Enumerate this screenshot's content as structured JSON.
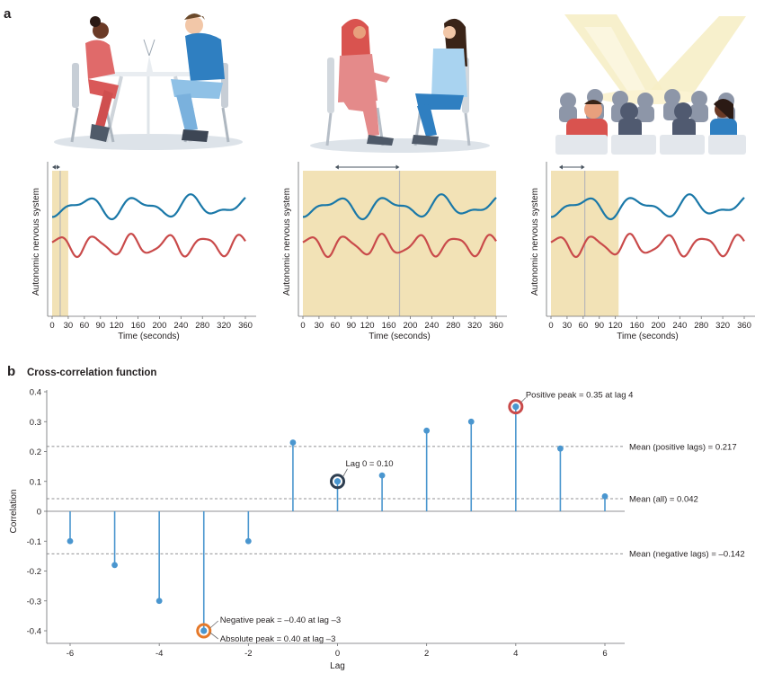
{
  "panel_a": {
    "letter": "a",
    "ylabel": "Autonomic nervous system",
    "xlabel": "Time (seconds)",
    "xticks": [
      "0",
      "30",
      "60",
      "90",
      "120",
      "160",
      "200",
      "240",
      "280",
      "320",
      "360"
    ],
    "colors": {
      "series_blue": "#1a78a8",
      "series_red": "#c94a4a",
      "window": "#f2e2b6"
    },
    "scenes": [
      "two-people-at-cafe-table",
      "two-women-seated-conversation",
      "audience-with-spotlights"
    ],
    "plots": [
      {
        "window_start_sec": 0,
        "window_end_sec": 30,
        "divider_sec": 15,
        "arrow_from_sec": 0,
        "arrow_to_sec": 15
      },
      {
        "window_start_sec": 0,
        "window_end_sec": 360,
        "divider_sec": 180,
        "arrow_from_sec": 60,
        "arrow_to_sec": 180
      },
      {
        "window_start_sec": 0,
        "window_end_sec": 126,
        "divider_sec": 63,
        "arrow_from_sec": 15,
        "arrow_to_sec": 63
      }
    ]
  },
  "panel_b": {
    "letter": "b",
    "title": "Cross-correlation function",
    "chart_data": {
      "type": "stem",
      "title": "Cross-correlation function",
      "xlabel": "Lag",
      "ylabel": "Correlation",
      "xlim": [
        -6,
        6
      ],
      "ylim": [
        -0.4,
        0.4
      ],
      "xticks": [
        -6,
        -4,
        -2,
        0,
        2,
        4,
        6
      ],
      "xtick_labels": [
        "-6",
        "-4",
        "-2",
        "0",
        "2",
        "4",
        "6"
      ],
      "yticks": [
        0.4,
        0.3,
        0.2,
        0.1,
        0,
        -0.1,
        -0.2,
        -0.3,
        -0.4
      ],
      "ytick_labels": [
        "0.4",
        "0.3",
        "0.2",
        "0.1",
        "0",
        "-0.1",
        "-0.2",
        "-0.3",
        "-0.4"
      ],
      "lags": [
        -6,
        -5,
        -4,
        -3,
        -2,
        -1,
        0,
        1,
        2,
        3,
        4,
        5,
        6
      ],
      "values": [
        -0.1,
        -0.18,
        -0.3,
        -0.4,
        -0.1,
        0.23,
        0.1,
        0.12,
        0.27,
        0.3,
        0.35,
        0.21,
        0.05
      ],
      "color": "#4a96cf",
      "reference_lines": [
        {
          "value": 0.217,
          "label": "Mean (positive lags) = 0.217"
        },
        {
          "value": 0.042,
          "label": "Mean (all) = 0.042"
        },
        {
          "value": -0.142,
          "label": "Mean (negative lags) = –0.142"
        }
      ],
      "highlights": [
        {
          "lag": 4,
          "value": 0.35,
          "ring_color": "#c94a4a",
          "labels": [
            "Positive peak = 0.35 at lag 4"
          ]
        },
        {
          "lag": 0,
          "value": 0.1,
          "ring_color": "#2e3e50",
          "labels": [
            "Lag 0 = 0.10"
          ]
        },
        {
          "lag": -3,
          "value": -0.4,
          "ring_color": "#e5792a",
          "labels": [
            "Negative peak = –0.40 at lag –3",
            "Absolute peak = 0.40 at lag –3"
          ]
        }
      ]
    }
  }
}
